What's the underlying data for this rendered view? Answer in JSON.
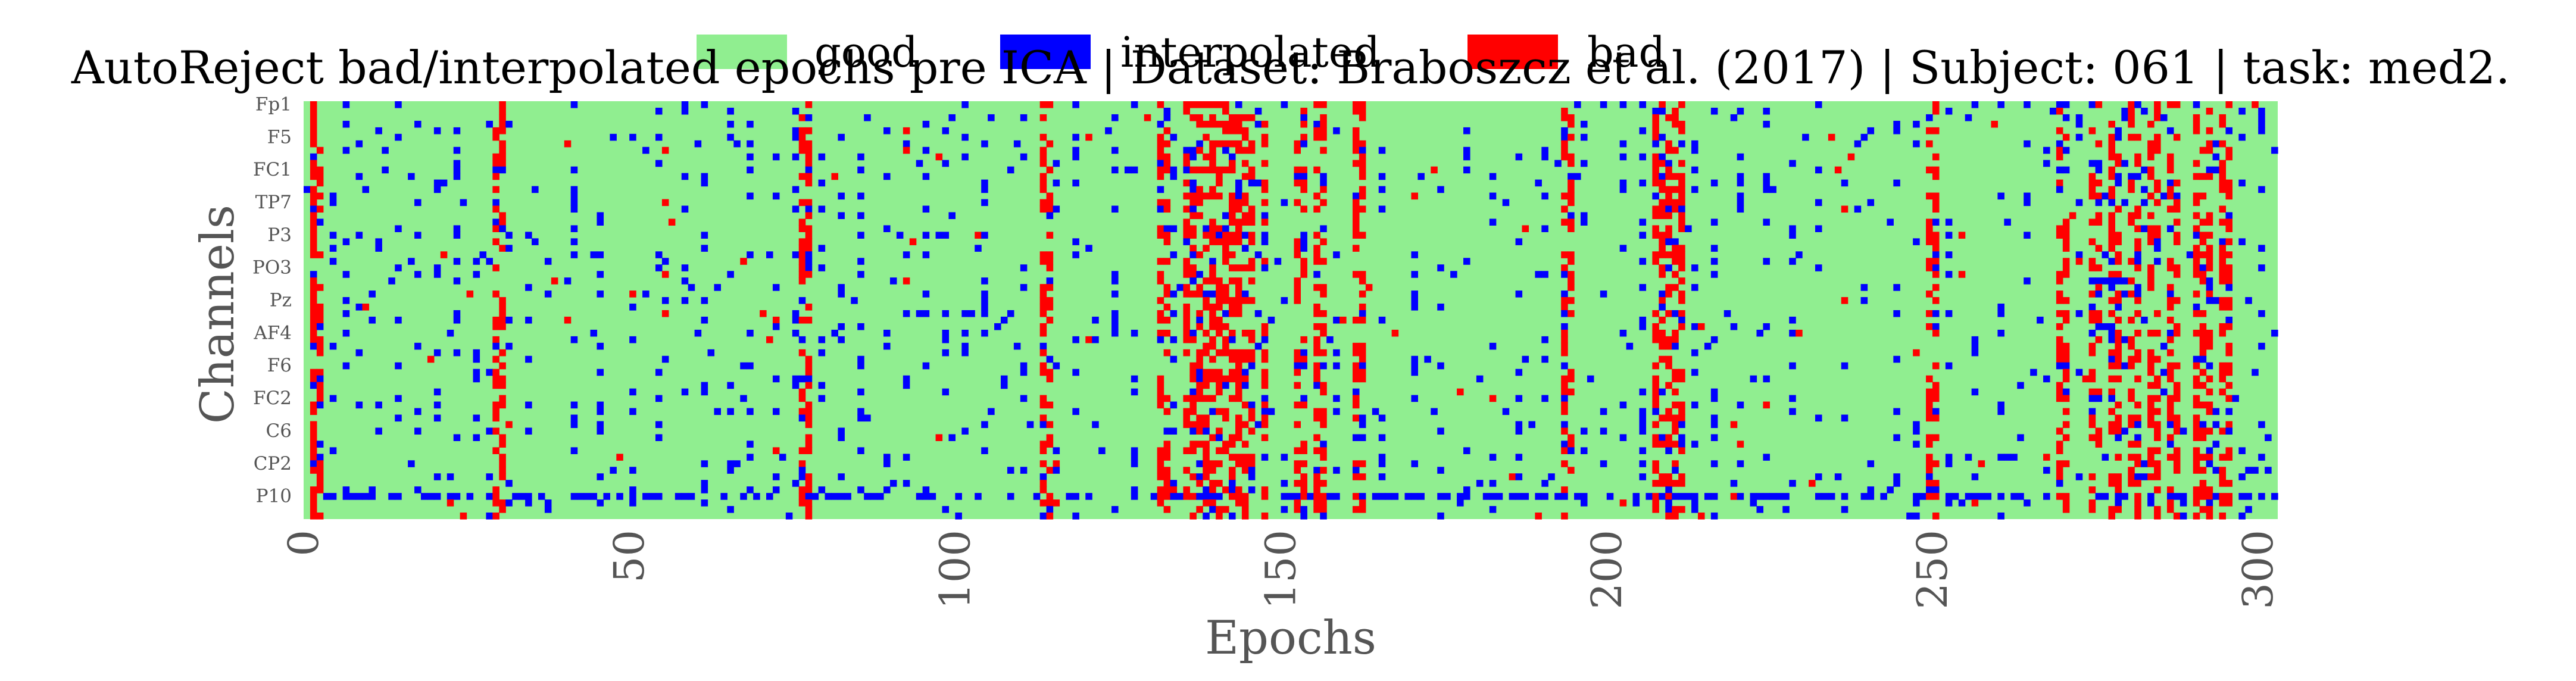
{
  "chart_data": {
    "type": "heatmap",
    "title": "AutoReject bad/interpolated epochs pre ICA | Dataset: Braboszcz et al. (2017) | Subject: 061 | task: med2.",
    "xlabel": "Epochs",
    "ylabel": "Channels",
    "xlim": [
      0,
      303
    ],
    "x_ticks": [
      0,
      50,
      100,
      150,
      200,
      250,
      300
    ],
    "y_tick_labels": [
      "Fp1",
      "F5",
      "FC1",
      "TP7",
      "P3",
      "PO3",
      "Pz",
      "AF4",
      "F6",
      "FC2",
      "C6",
      "CP2",
      "P10"
    ],
    "n_channels": 64,
    "n_epochs": 303,
    "grid": false,
    "legend_position": "top-center",
    "legend": [
      {
        "label": "good",
        "color": "#90ee90",
        "code": 0
      },
      {
        "label": "interpolated",
        "color": "#0000ff",
        "code": 1
      },
      {
        "label": "bad",
        "color": "#ff0000",
        "code": 2
      }
    ],
    "bad_epoch_columns": [
      1,
      2,
      29,
      30,
      76,
      77,
      113,
      114,
      131,
      132,
      135,
      136,
      137,
      138,
      139,
      140,
      141,
      142,
      143,
      144,
      145,
      147,
      152,
      153,
      155,
      156,
      161,
      162,
      193,
      194,
      207,
      208,
      209,
      210,
      211,
      249,
      250,
      269,
      270,
      274,
      275,
      277,
      278,
      280,
      281,
      283,
      284,
      286,
      287,
      290,
      291,
      292,
      294,
      295
    ],
    "interpolated_epoch_columns": [
      4,
      6,
      8,
      11,
      14,
      17,
      20,
      23,
      26,
      28,
      31,
      34,
      37,
      41,
      45,
      50,
      54,
      58,
      61,
      65,
      68,
      72,
      75,
      79,
      82,
      85,
      89,
      92,
      95,
      98,
      101,
      104,
      107,
      110,
      115,
      118,
      121,
      124,
      127,
      133,
      146,
      150,
      158,
      165,
      170,
      174,
      178,
      182,
      186,
      190,
      196,
      199,
      202,
      205,
      213,
      216,
      220,
      224,
      228,
      232,
      236,
      240,
      244,
      247,
      252,
      256,
      260,
      264,
      267,
      272,
      276,
      279,
      282,
      285,
      288,
      293,
      297,
      300
    ],
    "dense_interpolated_rows": [
      {
        "channel_index": 27,
        "epoch_range": [
          274,
          280
        ]
      },
      {
        "channel_index": 56,
        "epoch_range": [
          292,
          302
        ]
      },
      {
        "channel_index": 60,
        "epoch_range": [
          0,
          302
        ]
      },
      {
        "channel_index": 32,
        "epoch_range": [
          94,
          108
        ]
      },
      {
        "channel_index": 37,
        "epoch_range": [
          1,
          6
        ]
      }
    ]
  }
}
